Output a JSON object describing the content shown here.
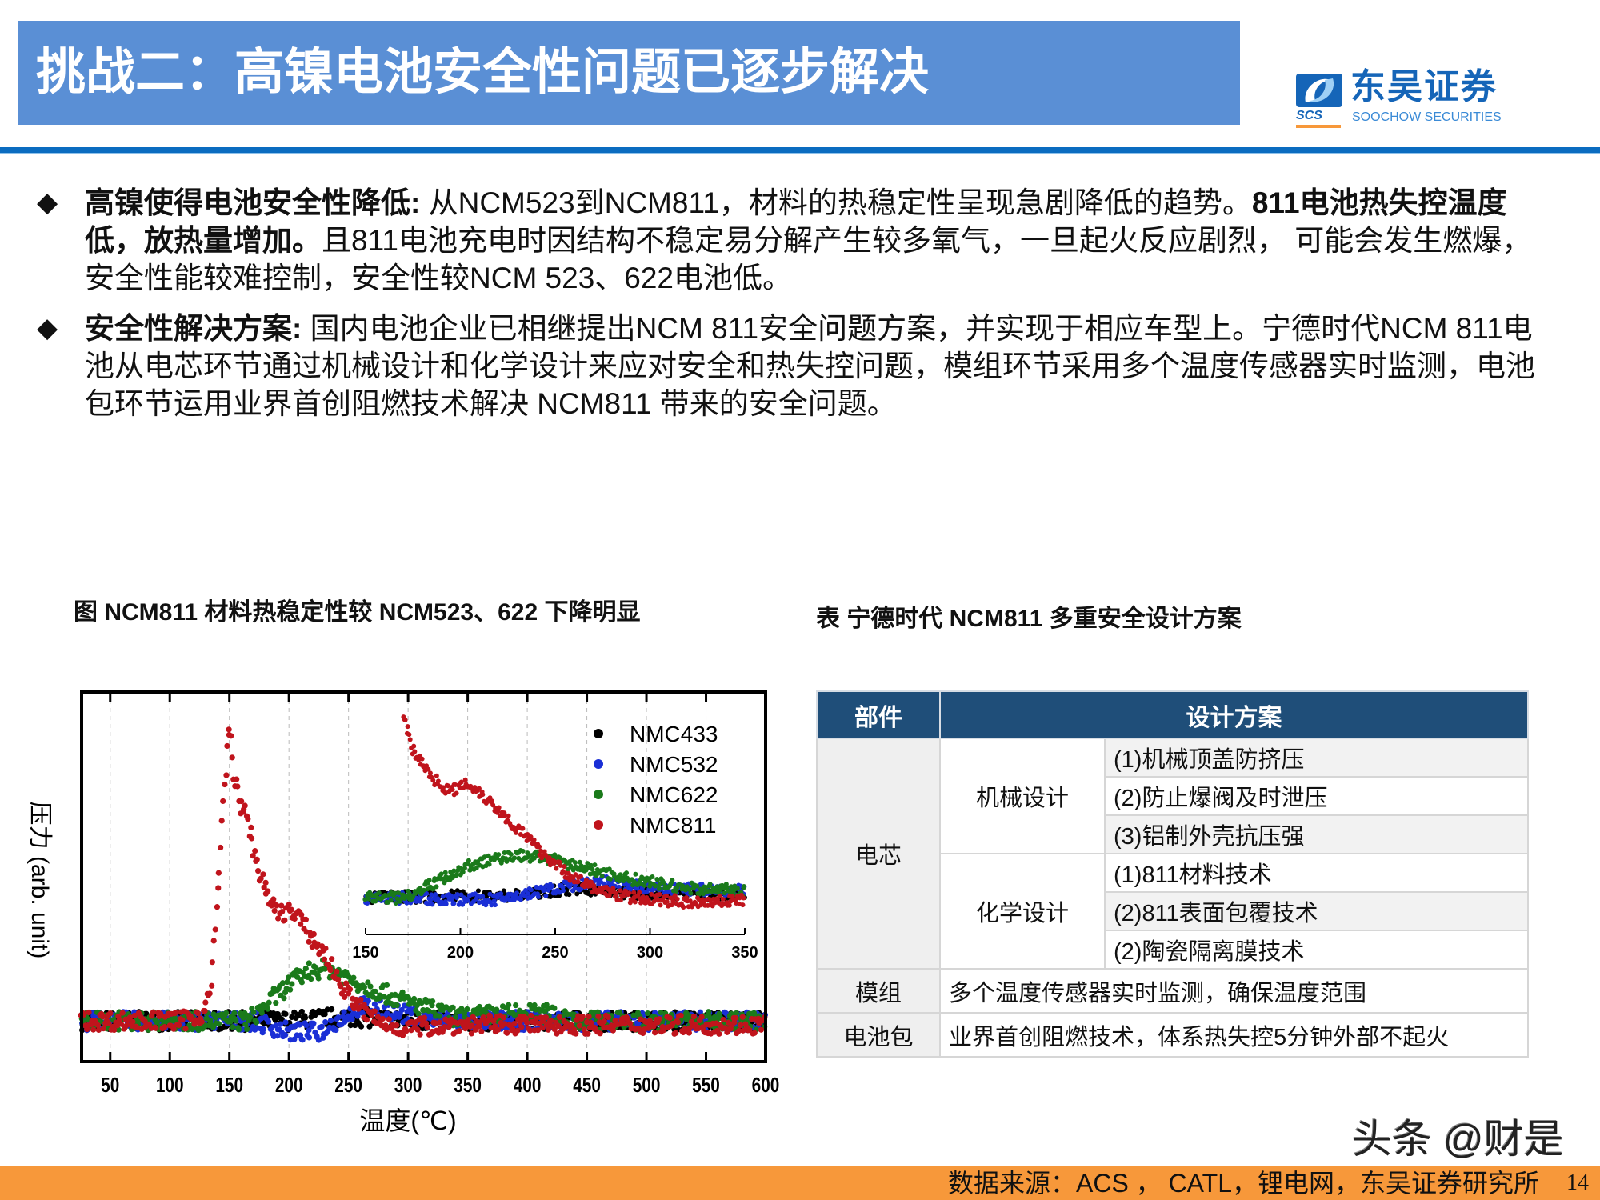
{
  "header": {
    "title": "挑战二：高镍电池安全性问题已逐步解决",
    "logo_cn": "东吴证券",
    "logo_en": "SOOCHOW SECURITIES",
    "logo_abbr": "SCS",
    "colors": {
      "title_bar": "#5a8fd5",
      "rule": "#0b6cc0",
      "logo": "#1565b8"
    }
  },
  "bullets": [
    {
      "icon": "diamond-bullet",
      "segments": [
        {
          "text": "高镍使得电池安全性降低:",
          "bold": true
        },
        {
          "text": " 从NCM523到NCM811，材料的热稳定性呈现急剧降低的趋势。",
          "bold": false
        },
        {
          "text": "811电池热失控温度低，放热量增加。",
          "bold": true
        },
        {
          "text": "且811电池充电时因结构不稳定易分解产生较多氧气，一旦起火反应剧烈， 可能会发生燃爆，安全性能较难控制，安全性较NCM 523、622电池低。",
          "bold": false
        }
      ]
    },
    {
      "icon": "diamond-bullet",
      "segments": [
        {
          "text": "安全性解决方案:",
          "bold": true
        },
        {
          "text": " 国内电池企业已相继提出NCM 811安全问题方案，并实现于相应车型上。宁德时代NCM 811电池从电芯环节通过机械设计和化学设计来应对安全和热失控问题，模组环节采用多个温度传感器实时监测，电池包环节运用业界首创阻燃技术解决 NCM811 带来的安全问题。",
          "bold": false
        }
      ]
    }
  ],
  "figure_caption": "图 NCM811 材料热稳定性较 NCM523、622 下降明显",
  "table_caption": "表 宁德时代 NCM811 多重安全设计方案",
  "chart_data": {
    "type": "scatter",
    "title": "",
    "xlabel": "温度(℃)",
    "ylabel": "压力 (arb. unit)",
    "xlim": [
      26,
      600
    ],
    "ylim": [
      0,
      1
    ],
    "xticks": [
      50,
      100,
      150,
      200,
      250,
      300,
      350,
      400,
      450,
      500,
      550,
      600
    ],
    "grid": "vertical dashed",
    "legend_position": "top-right",
    "series": [
      {
        "name": "NMC433",
        "color": "#000000",
        "points": [
          [
            26,
            0.11
          ],
          [
            200,
            0.11
          ],
          [
            240,
            0.12
          ],
          [
            260,
            0.12
          ],
          [
            300,
            0.11
          ],
          [
            600,
            0.11
          ]
        ]
      },
      {
        "name": "NMC532",
        "color": "#1a2fd6",
        "points": [
          [
            26,
            0.11
          ],
          [
            170,
            0.11
          ],
          [
            200,
            0.08
          ],
          [
            225,
            0.08
          ],
          [
            245,
            0.12
          ],
          [
            260,
            0.15
          ],
          [
            280,
            0.14
          ],
          [
            320,
            0.11
          ],
          [
            600,
            0.11
          ]
        ]
      },
      {
        "name": "NMC622",
        "color": "#1a7a1a",
        "points": [
          [
            26,
            0.11
          ],
          [
            165,
            0.11
          ],
          [
            180,
            0.15
          ],
          [
            200,
            0.21
          ],
          [
            220,
            0.25
          ],
          [
            235,
            0.25
          ],
          [
            260,
            0.21
          ],
          [
            300,
            0.16
          ],
          [
            340,
            0.12
          ],
          [
            380,
            0.13
          ],
          [
            420,
            0.13
          ],
          [
            450,
            0.11
          ],
          [
            600,
            0.11
          ]
        ]
      },
      {
        "name": "NMC811",
        "color": "#c0141c",
        "points": [
          [
            26,
            0.11
          ],
          [
            110,
            0.11
          ],
          [
            128,
            0.13
          ],
          [
            135,
            0.2
          ],
          [
            140,
            0.45
          ],
          [
            145,
            0.7
          ],
          [
            150,
            0.92
          ],
          [
            153,
            0.8
          ],
          [
            158,
            0.7
          ],
          [
            165,
            0.66
          ],
          [
            170,
            0.58
          ],
          [
            180,
            0.46
          ],
          [
            190,
            0.4
          ],
          [
            200,
            0.41
          ],
          [
            210,
            0.38
          ],
          [
            220,
            0.33
          ],
          [
            230,
            0.29
          ],
          [
            240,
            0.23
          ],
          [
            250,
            0.18
          ],
          [
            265,
            0.13
          ],
          [
            280,
            0.1
          ],
          [
            300,
            0.09
          ],
          [
            330,
            0.1
          ],
          [
            600,
            0.1
          ]
        ]
      }
    ],
    "inset": {
      "xlim": [
        150,
        350
      ],
      "xticks": [
        150,
        200,
        250,
        300,
        350
      ],
      "ylim": [
        0,
        1
      ],
      "series": [
        {
          "name": "NMC433",
          "color": "#000000",
          "points": [
            [
              150,
              0.16
            ],
            [
              230,
              0.17
            ],
            [
              260,
              0.2
            ],
            [
              290,
              0.18
            ],
            [
              350,
              0.17
            ]
          ]
        },
        {
          "name": "NMC532",
          "color": "#1a2fd6",
          "points": [
            [
              150,
              0.16
            ],
            [
              220,
              0.15
            ],
            [
              250,
              0.2
            ],
            [
              275,
              0.23
            ],
            [
              300,
              0.2
            ],
            [
              350,
              0.19
            ]
          ]
        },
        {
          "name": "NMC622",
          "color": "#1a7a1a",
          "points": [
            [
              150,
              0.16
            ],
            [
              170,
              0.16
            ],
            [
              185,
              0.22
            ],
            [
              205,
              0.3
            ],
            [
              225,
              0.34
            ],
            [
              240,
              0.34
            ],
            [
              265,
              0.29
            ],
            [
              290,
              0.24
            ],
            [
              320,
              0.2
            ],
            [
              350,
              0.19
            ]
          ]
        },
        {
          "name": "NMC811",
          "color": "#c0141c",
          "points": [
            [
              170,
              0.95
            ],
            [
              175,
              0.8
            ],
            [
              185,
              0.68
            ],
            [
              195,
              0.62
            ],
            [
              203,
              0.66
            ],
            [
              210,
              0.62
            ],
            [
              225,
              0.5
            ],
            [
              240,
              0.38
            ],
            [
              255,
              0.27
            ],
            [
              270,
              0.2
            ],
            [
              290,
              0.16
            ],
            [
              320,
              0.14
            ],
            [
              350,
              0.15
            ]
          ]
        }
      ]
    }
  },
  "table": {
    "headers": [
      "部件",
      "设计方案"
    ],
    "cell_component": "电芯",
    "groups": [
      {
        "name": "机械设计",
        "items": [
          "(1)机械顶盖防挤压",
          "(2)防止爆阀及时泄压",
          "(3)铝制外壳抗压强"
        ]
      },
      {
        "name": "化学设计",
        "items": [
          "(1)811材料技术",
          "(2)811表面包覆技术",
          "(2)陶瓷隔离膜技术"
        ]
      }
    ],
    "rows": [
      {
        "component": "模组",
        "plan": "多个温度传感器实时监测，确保温度范围"
      },
      {
        "component": "电池包",
        "plan": "业界首创阻燃技术，体系热失控5分钟外部不起火"
      }
    ],
    "colors": {
      "header": "#1f4e79"
    }
  },
  "footer": {
    "source": "数据来源：ACS ， CATL，锂电网，东吴证券研究所",
    "page": "14",
    "color": "#f7983a"
  },
  "watermark": "头条 @财是"
}
